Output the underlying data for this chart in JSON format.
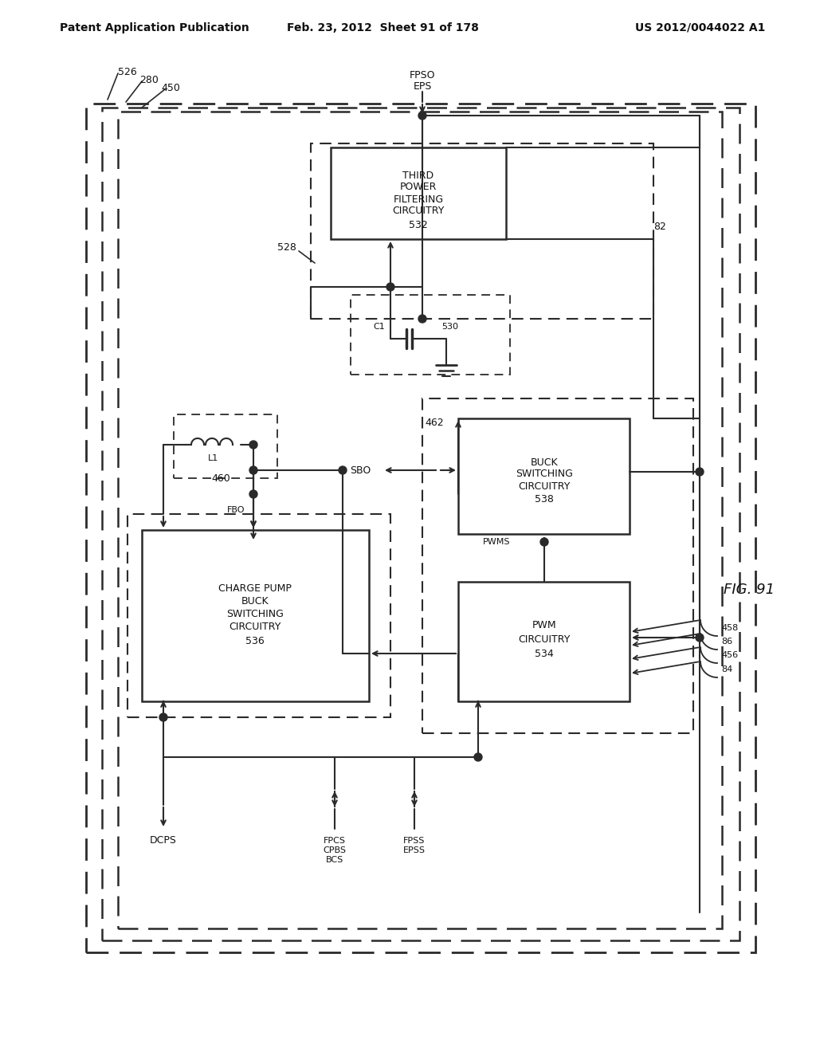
{
  "bg_color": "#ffffff",
  "line_color": "#2a2a2a",
  "header_left": "Patent Application Publication",
  "header_mid": "Feb. 23, 2012  Sheet 91 of 178",
  "header_right": "US 2012/0044022 A1",
  "fig_label": "FIG. 91"
}
